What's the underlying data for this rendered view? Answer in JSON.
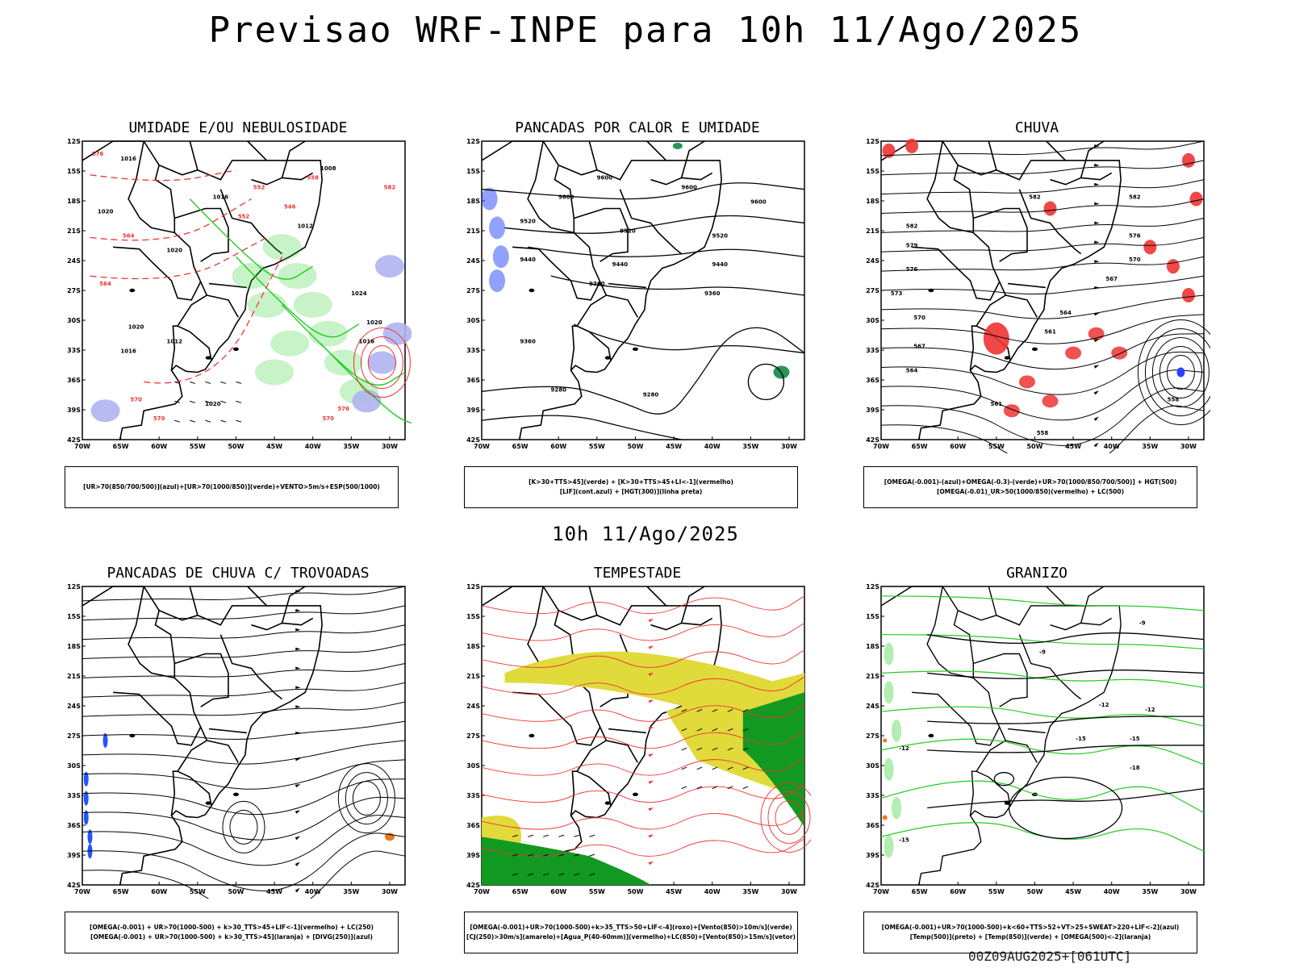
{
  "title": "Previsao WRF-INPE  para 10h 11/Ago/2025",
  "mid_title": "10h 11/Ago/2025",
  "timestamp": "00Z09AUG2025+[061UTC]",
  "axes": {
    "lat_labels": [
      "12S",
      "15S",
      "18S",
      "21S",
      "24S",
      "27S",
      "30S",
      "33S",
      "36S",
      "39S",
      "42S"
    ],
    "lon_labels": [
      "70W",
      "65W",
      "60W",
      "55W",
      "50W",
      "45W",
      "40W",
      "35W",
      "30W"
    ]
  },
  "chart_data": [
    {
      "type": "map",
      "title": "UMIDADE E/OU NEBULOSIDADE",
      "legend": [
        "[UR>70(850/700/500)](azul)+[UR>70(1000/850)](verde)+VENTO>5m/s+ESP(500/1000)"
      ],
      "contour_labels": [
        "1016",
        "1020",
        "1020",
        "1020",
        "1016",
        "1016",
        "1012",
        "1008",
        "1024",
        "1020",
        "1016",
        "1012",
        "1020",
        "570",
        "570",
        "576",
        "564",
        "564",
        "558",
        "552",
        "552",
        "546",
        "570",
        "576",
        "582"
      ],
      "colors": {
        "uplevel": "#b0b4f0",
        "lowlevel": "#22cc22",
        "thickness": "#ee3333",
        "pressure": "#000000"
      },
      "xlim": [
        -70,
        -28
      ],
      "ylim": [
        -42,
        -11
      ]
    },
    {
      "type": "map",
      "title": "PANCADAS POR CALOR E UMIDADE",
      "legend": [
        "[K>30+TTS>45](verde) + [K>30+TTS>45+LI<-1](vermelho)",
        "[LIF](cont.azul) + [HGT(300)](linha preta)"
      ],
      "contour_labels": [
        "9600",
        "9600",
        "9600",
        "9600",
        "9520",
        "9520",
        "9520",
        "9440",
        "9440",
        "9440",
        "9360",
        "9360",
        "9360",
        "9280",
        "9280"
      ],
      "colors": {
        "lif": "#2244ff",
        "hgt": "#000000",
        "red": "#ee2222",
        "green": "#118844"
      },
      "xlim": [
        -70,
        -28
      ],
      "ylim": [
        -42,
        -11
      ]
    },
    {
      "type": "map",
      "title": "CHUVA",
      "legend": [
        "[OMEGA(-0.001)-(azul)+OMEGA(-0.3)-(verde)+UR>70(1000/850/700/500)] + HGT(500)",
        "[OMEGA(-0.01)_UR>50(1000/850)(vermelho) + LC(500)"
      ],
      "contour_labels": [
        "582",
        "582",
        "576",
        "570",
        "567",
        "564",
        "561",
        "558",
        "582",
        "579",
        "576",
        "573",
        "570",
        "567",
        "564",
        "561",
        "558"
      ],
      "colors": {
        "rain": "#ee3333",
        "streamline": "#000000",
        "omega": "#2244ff"
      },
      "xlim": [
        -70,
        -28
      ],
      "ylim": [
        -42,
        -11
      ]
    },
    {
      "type": "map",
      "title": "PANCADAS DE CHUVA C/ TROVOADAS",
      "legend": [
        "[OMEGA(-0.001) + UR>70(1000-500) + k>30_TTS>45+LIF<-1](vermelho) + LC(250)",
        "[OMEGA(-0.001) + UR>70(1000-500) + k>30_TTS>45](laranja) + [DIVG(250)](azul)"
      ],
      "contour_labels": [],
      "colors": {
        "divg": "#2255ff",
        "orange": "#ee7722",
        "streamline": "#000000"
      },
      "xlim": [
        -70,
        -28
      ],
      "ylim": [
        -42,
        -11
      ]
    },
    {
      "type": "map",
      "title": "TEMPESTADE",
      "legend": [
        "[OMEGA(-0.001)+UR>70(1000-500)+k>35_TTS>50+LIF<-4](roxo)+[Vento(850)>10m/s](verde)",
        "[CJ(250)>30m/s](amarelo)+[Agua_P(40-60mm)](vermelho)+LC(850)+[Vento(850)>15m/s](vetor)"
      ],
      "contour_labels": [],
      "colors": {
        "jet": "#e0da3a",
        "wind": "#119922",
        "streamline": "#ee3333",
        "vector": "#000000"
      },
      "xlim": [
        -70,
        -28
      ],
      "ylim": [
        -42,
        -11
      ]
    },
    {
      "type": "map",
      "title": "GRANIZO",
      "legend": [
        "[OMEGA(-0.001)+UR>70(1000-500)+k<60+TTS>52+VT>25+SWEAT>220+LIF<-2](azul)",
        "[Temp(500)](preto) + [Temp(850)](verde) + [OMEGA(500)<-2](laranja)"
      ],
      "contour_labels": [
        "-9",
        "-9",
        "-12",
        "-12",
        "-15",
        "-15",
        "-18",
        "-12",
        "-15"
      ],
      "colors": {
        "t500": "#000000",
        "t850": "#22cc22",
        "omega": "#ee7722"
      },
      "xlim": [
        -70,
        -28
      ],
      "ylim": [
        -42,
        -11
      ]
    }
  ]
}
